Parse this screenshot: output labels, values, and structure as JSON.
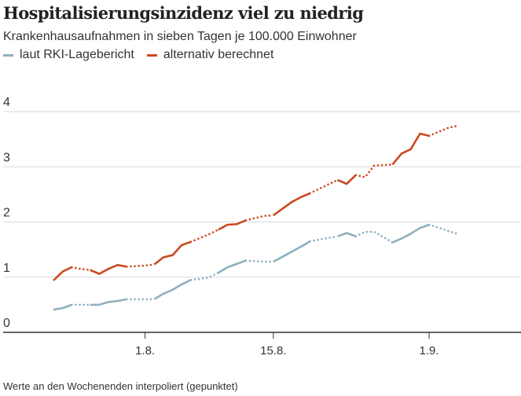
{
  "title": "Hospitalisierungsinzidenz viel zu niedrig",
  "subtitle": "Krankenhausaufnahmen in sieben Tagen je 100.000 Einwohner",
  "footnote": "Werte an den Wochenenden interpoliert (gepunktet)",
  "colors": {
    "rki": "#8fb0bf",
    "alt": "#cc4a1f",
    "grid": "#d9d9d9",
    "axis": "#333333",
    "text": "#333333"
  },
  "chart_data": {
    "type": "line",
    "xlabel": "",
    "ylabel": "",
    "legend_position": "top-left",
    "grid": true,
    "x_range": [
      "2021-07-22",
      "2021-09-13"
    ],
    "ylim": [
      0,
      4
    ],
    "y_ticks": [
      0,
      1,
      2,
      3,
      4
    ],
    "x_ticks": [
      {
        "date": "2021-08-01",
        "label": "1.8."
      },
      {
        "date": "2021-08-15",
        "label": "15.8."
      },
      {
        "date": "2021-09-01",
        "label": "1.9."
      }
    ],
    "series": [
      {
        "name": "laut RKI-Lagebericht",
        "points": [
          [
            "2021-07-22",
            0.41
          ],
          [
            "2021-07-23",
            0.44
          ],
          [
            "2021-07-24",
            0.5
          ],
          [
            "2021-07-25",
            0.5
          ],
          [
            "2021-07-26",
            0.5
          ],
          [
            "2021-07-27",
            0.5
          ],
          [
            "2021-07-28",
            0.55
          ],
          [
            "2021-07-29",
            0.57
          ],
          [
            "2021-07-30",
            0.6
          ],
          [
            "2021-07-31",
            0.6
          ],
          [
            "2021-08-01",
            0.6
          ],
          [
            "2021-08-02",
            0.6
          ],
          [
            "2021-08-03",
            0.7
          ],
          [
            "2021-08-04",
            0.77
          ],
          [
            "2021-08-05",
            0.87
          ],
          [
            "2021-08-06",
            0.95
          ],
          [
            "2021-08-07",
            0.97
          ],
          [
            "2021-08-08",
            1.0
          ],
          [
            "2021-08-09",
            1.08
          ],
          [
            "2021-08-10",
            1.18
          ],
          [
            "2021-08-11",
            1.24
          ],
          [
            "2021-08-12",
            1.3
          ],
          [
            "2021-08-13",
            1.29
          ],
          [
            "2021-08-14",
            1.28
          ],
          [
            "2021-08-15",
            1.28
          ],
          [
            "2021-08-16",
            1.37
          ],
          [
            "2021-08-17",
            1.46
          ],
          [
            "2021-08-18",
            1.55
          ],
          [
            "2021-08-19",
            1.65
          ],
          [
            "2021-08-20",
            1.68
          ],
          [
            "2021-08-21",
            1.71
          ],
          [
            "2021-08-22",
            1.74
          ],
          [
            "2021-08-23",
            1.8
          ],
          [
            "2021-08-24",
            1.74
          ],
          [
            "2021-08-25",
            1.82
          ],
          [
            "2021-08-26",
            1.82
          ],
          [
            "2021-08-27",
            1.73
          ],
          [
            "2021-08-28",
            1.63
          ],
          [
            "2021-08-29",
            1.7
          ],
          [
            "2021-08-30",
            1.79
          ],
          [
            "2021-08-31",
            1.89
          ],
          [
            "2021-09-01",
            1.95
          ],
          [
            "2021-09-02",
            1.9
          ],
          [
            "2021-09-03",
            1.84
          ],
          [
            "2021-09-04",
            1.79
          ]
        ]
      },
      {
        "name": "alternativ berechnet",
        "points": [
          [
            "2021-07-22",
            0.94
          ],
          [
            "2021-07-23",
            1.1
          ],
          [
            "2021-07-24",
            1.18
          ],
          [
            "2021-07-25",
            1.15
          ],
          [
            "2021-07-26",
            1.13
          ],
          [
            "2021-07-27",
            1.06
          ],
          [
            "2021-07-28",
            1.15
          ],
          [
            "2021-07-29",
            1.22
          ],
          [
            "2021-07-30",
            1.19
          ],
          [
            "2021-07-31",
            1.2
          ],
          [
            "2021-08-01",
            1.21
          ],
          [
            "2021-08-02",
            1.23
          ],
          [
            "2021-08-03",
            1.36
          ],
          [
            "2021-08-04",
            1.4
          ],
          [
            "2021-08-05",
            1.58
          ],
          [
            "2021-08-06",
            1.64
          ],
          [
            "2021-08-07",
            1.71
          ],
          [
            "2021-08-08",
            1.78
          ],
          [
            "2021-08-09",
            1.86
          ],
          [
            "2021-08-10",
            1.95
          ],
          [
            "2021-08-11",
            1.96
          ],
          [
            "2021-08-12",
            2.03
          ],
          [
            "2021-08-13",
            2.07
          ],
          [
            "2021-08-14",
            2.11
          ],
          [
            "2021-08-15",
            2.12
          ],
          [
            "2021-08-16",
            2.24
          ],
          [
            "2021-08-17",
            2.36
          ],
          [
            "2021-08-18",
            2.45
          ],
          [
            "2021-08-19",
            2.52
          ],
          [
            "2021-08-20",
            2.6
          ],
          [
            "2021-08-21",
            2.68
          ],
          [
            "2021-08-22",
            2.76
          ],
          [
            "2021-08-23",
            2.69
          ],
          [
            "2021-08-24",
            2.85
          ],
          [
            "2021-08-25",
            2.81
          ],
          [
            "2021-08-26",
            3.02
          ],
          [
            "2021-08-27",
            3.03
          ],
          [
            "2021-08-28",
            3.04
          ],
          [
            "2021-08-29",
            3.24
          ],
          [
            "2021-08-30",
            3.32
          ],
          [
            "2021-08-31",
            3.6
          ],
          [
            "2021-09-01",
            3.56
          ],
          [
            "2021-09-02",
            3.63
          ],
          [
            "2021-09-03",
            3.7
          ],
          [
            "2021-09-04",
            3.74
          ]
        ]
      }
    ],
    "interpolated_segments": [
      [
        "2021-07-24",
        "2021-07-26"
      ],
      [
        "2021-07-30",
        "2021-08-02"
      ],
      [
        "2021-08-06",
        "2021-08-09"
      ],
      [
        "2021-08-12",
        "2021-08-15"
      ],
      [
        "2021-08-19",
        "2021-08-22"
      ],
      [
        "2021-08-24",
        "2021-08-26"
      ],
      [
        "2021-08-26",
        "2021-08-28"
      ],
      [
        "2021-09-01",
        "2021-09-04"
      ]
    ]
  }
}
